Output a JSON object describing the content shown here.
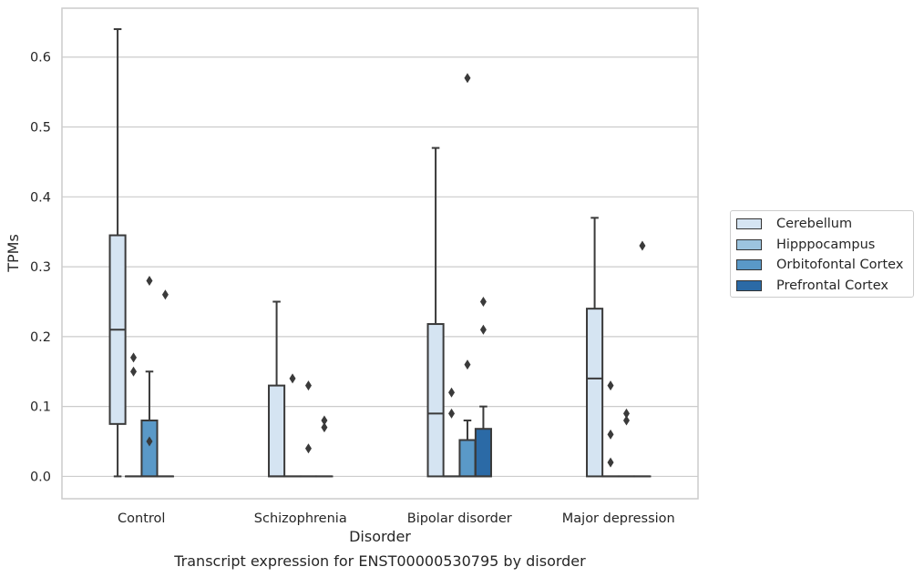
{
  "chart_data": {
    "type": "box",
    "title": "",
    "caption": "Transcript expression for ENST00000530795 by disorder",
    "xlabel": "Disorder",
    "ylabel": "TPMs",
    "ylim": [
      -0.032,
      0.67
    ],
    "yticks": [
      "0.0",
      "0.1",
      "0.2",
      "0.3",
      "0.4",
      "0.5",
      "0.6"
    ],
    "grid": true,
    "legend_position": "right",
    "categories": [
      "Control",
      "Schizophrenia",
      "Bipolar disorder",
      "Major depression"
    ],
    "series": [
      {
        "name": "Cerebellum",
        "color": "#d5e4f2",
        "boxes": [
          {
            "whisker_low": 0.0,
            "q1": 0.075,
            "median": 0.21,
            "q3": 0.345,
            "whisker_high": 0.64,
            "outliers": []
          },
          {
            "whisker_low": 0.0,
            "q1": 0.0,
            "median": 0.0,
            "q3": 0.13,
            "whisker_high": 0.25,
            "outliers": []
          },
          {
            "whisker_low": 0.0,
            "q1": 0.0,
            "median": 0.09,
            "q3": 0.218,
            "whisker_high": 0.47,
            "outliers": []
          },
          {
            "whisker_low": 0.0,
            "q1": 0.0,
            "median": 0.14,
            "q3": 0.24,
            "whisker_high": 0.37,
            "outliers": []
          }
        ]
      },
      {
        "name": "Hipppocampus",
        "color": "#9cc4df",
        "boxes": [
          {
            "whisker_low": 0.0,
            "q1": 0.0,
            "median": 0.0,
            "q3": 0.0,
            "whisker_high": 0.0,
            "outliers": [
              0.17,
              0.15
            ]
          },
          {
            "whisker_low": 0.0,
            "q1": 0.0,
            "median": 0.0,
            "q3": 0.0,
            "whisker_high": 0.0,
            "outliers": [
              0.14
            ]
          },
          {
            "whisker_low": 0.0,
            "q1": 0.0,
            "median": 0.0,
            "q3": 0.0,
            "whisker_high": 0.0,
            "outliers": [
              0.12,
              0.09
            ]
          },
          {
            "whisker_low": 0.0,
            "q1": 0.0,
            "median": 0.0,
            "q3": 0.0,
            "whisker_high": 0.0,
            "outliers": [
              0.13,
              0.06,
              0.02
            ]
          }
        ]
      },
      {
        "name": "Orbitofontal Cortex",
        "color": "#5a99c8",
        "boxes": [
          {
            "whisker_low": 0.0,
            "q1": 0.0,
            "median": 0.0,
            "q3": 0.08,
            "whisker_high": 0.15,
            "outliers": [
              0.28,
              0.05
            ]
          },
          {
            "whisker_low": 0.0,
            "q1": 0.0,
            "median": 0.0,
            "q3": 0.0,
            "whisker_high": 0.0,
            "outliers": [
              0.13,
              0.04
            ]
          },
          {
            "whisker_low": 0.0,
            "q1": 0.0,
            "median": 0.0,
            "q3": 0.052,
            "whisker_high": 0.08,
            "outliers": [
              0.57,
              0.16
            ]
          },
          {
            "whisker_low": 0.0,
            "q1": 0.0,
            "median": 0.0,
            "q3": 0.0,
            "whisker_high": 0.0,
            "outliers": [
              0.09,
              0.08
            ]
          }
        ]
      },
      {
        "name": "Prefrontal Cortex",
        "color": "#2b6aa6",
        "boxes": [
          {
            "whisker_low": 0.0,
            "q1": 0.0,
            "median": 0.0,
            "q3": 0.0,
            "whisker_high": 0.0,
            "outliers": [
              0.26
            ]
          },
          {
            "whisker_low": 0.0,
            "q1": 0.0,
            "median": 0.0,
            "q3": 0.0,
            "whisker_high": 0.0,
            "outliers": [
              0.08,
              0.07
            ]
          },
          {
            "whisker_low": 0.0,
            "q1": 0.0,
            "median": 0.0,
            "q3": 0.068,
            "whisker_high": 0.1,
            "outliers": [
              0.25,
              0.21
            ]
          },
          {
            "whisker_low": 0.0,
            "q1": 0.0,
            "median": 0.0,
            "q3": 0.0,
            "whisker_high": 0.0,
            "outliers": [
              0.33
            ]
          }
        ]
      }
    ]
  }
}
